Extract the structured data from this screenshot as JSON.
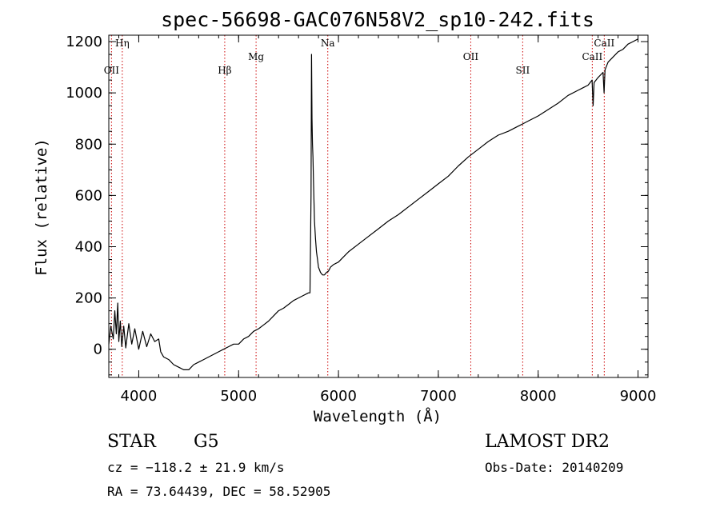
{
  "chart_data": {
    "type": "line",
    "title": "spec-56698-GAC076N58V2_sp10-242.fits",
    "xlabel": "Wavelength (Å)",
    "ylabel": "Flux (relative)",
    "xlim": [
      3700,
      9100
    ],
    "ylim": [
      -110,
      1225
    ],
    "x_ticks": [
      4000,
      5000,
      6000,
      7000,
      8000,
      9000
    ],
    "y_ticks": [
      0,
      200,
      400,
      600,
      800,
      1000,
      1200
    ],
    "grid": false,
    "legend": "none",
    "line_color": "#000000",
    "marker_color": "#cc0000",
    "series": [
      {
        "x": [
          3700,
          3720,
          3745,
          3760,
          3775,
          3790,
          3800,
          3815,
          3830,
          3850,
          3870,
          3900,
          3930,
          3960,
          4000,
          4040,
          4080,
          4120,
          4160,
          4200,
          4220,
          4250,
          4300,
          4350,
          4400,
          4450,
          4500,
          4550,
          4600,
          4650,
          4700,
          4750,
          4800,
          4850,
          4900,
          4950,
          5000,
          5050,
          5100,
          5150,
          5200,
          5250,
          5300,
          5350,
          5400,
          5450,
          5500,
          5550,
          5600,
          5650,
          5700,
          5715,
          5725,
          5730,
          5735,
          5740,
          5745,
          5750,
          5760,
          5770,
          5780,
          5790,
          5800,
          5820,
          5840,
          5860,
          5880,
          5900,
          5920,
          5950,
          6000,
          6050,
          6100,
          6200,
          6300,
          6400,
          6500,
          6600,
          6700,
          6800,
          6900,
          7000,
          7100,
          7200,
          7300,
          7400,
          7500,
          7600,
          7700,
          7800,
          7850,
          7900,
          8000,
          8100,
          8200,
          8300,
          8400,
          8450,
          8500,
          8540,
          8550,
          8560,
          8600,
          8650,
          8660,
          8670,
          8700,
          8750,
          8800,
          8850,
          8900,
          8950,
          9000
        ],
        "y": [
          20,
          90,
          40,
          150,
          60,
          180,
          30,
          110,
          10,
          90,
          5,
          100,
          20,
          80,
          0,
          70,
          10,
          60,
          30,
          40,
          -10,
          -30,
          -40,
          -60,
          -70,
          -80,
          -80,
          -60,
          -50,
          -40,
          -30,
          -20,
          -10,
          0,
          10,
          20,
          20,
          40,
          50,
          70,
          80,
          95,
          110,
          130,
          150,
          160,
          175,
          190,
          200,
          210,
          220,
          220,
          600,
          1150,
          900,
          800,
          750,
          650,
          500,
          430,
          380,
          350,
          320,
          300,
          290,
          290,
          300,
          305,
          320,
          330,
          340,
          360,
          380,
          410,
          440,
          470,
          500,
          525,
          555,
          585,
          615,
          645,
          675,
          715,
          750,
          780,
          810,
          835,
          850,
          870,
          880,
          890,
          910,
          935,
          960,
          990,
          1010,
          1020,
          1030,
          1050,
          950,
          1040,
          1060,
          1080,
          1000,
          1090,
          1120,
          1140,
          1160,
          1170,
          1190,
          1200,
          1210
        ]
      }
    ],
    "lines": [
      {
        "label": "Hη",
        "x": 3835,
        "row": 1
      },
      {
        "label": "OII",
        "x": 3727,
        "row": 2
      },
      {
        "label": "Hβ",
        "x": 4861,
        "row": 2
      },
      {
        "label": "Mg",
        "x": 5175,
        "row": 1.5
      },
      {
        "label": "Na",
        "x": 5893,
        "row": 1
      },
      {
        "label": "OII",
        "x": 7325,
        "row": 1.5
      },
      {
        "label": "SII",
        "x": 7845,
        "row": 2
      },
      {
        "label": "CaII",
        "x": 8542,
        "row": 1.5
      },
      {
        "label": "CaII",
        "x": 8662,
        "row": 1
      }
    ]
  },
  "footer": {
    "class_label": "STAR",
    "subclass": "G5",
    "survey": "LAMOST DR2",
    "cz": "cz = −118.2 ± 21.9 km/s",
    "obs_date": "Obs-Date: 20140209",
    "coords": "RA =  73.64439, DEC =  58.52905"
  }
}
